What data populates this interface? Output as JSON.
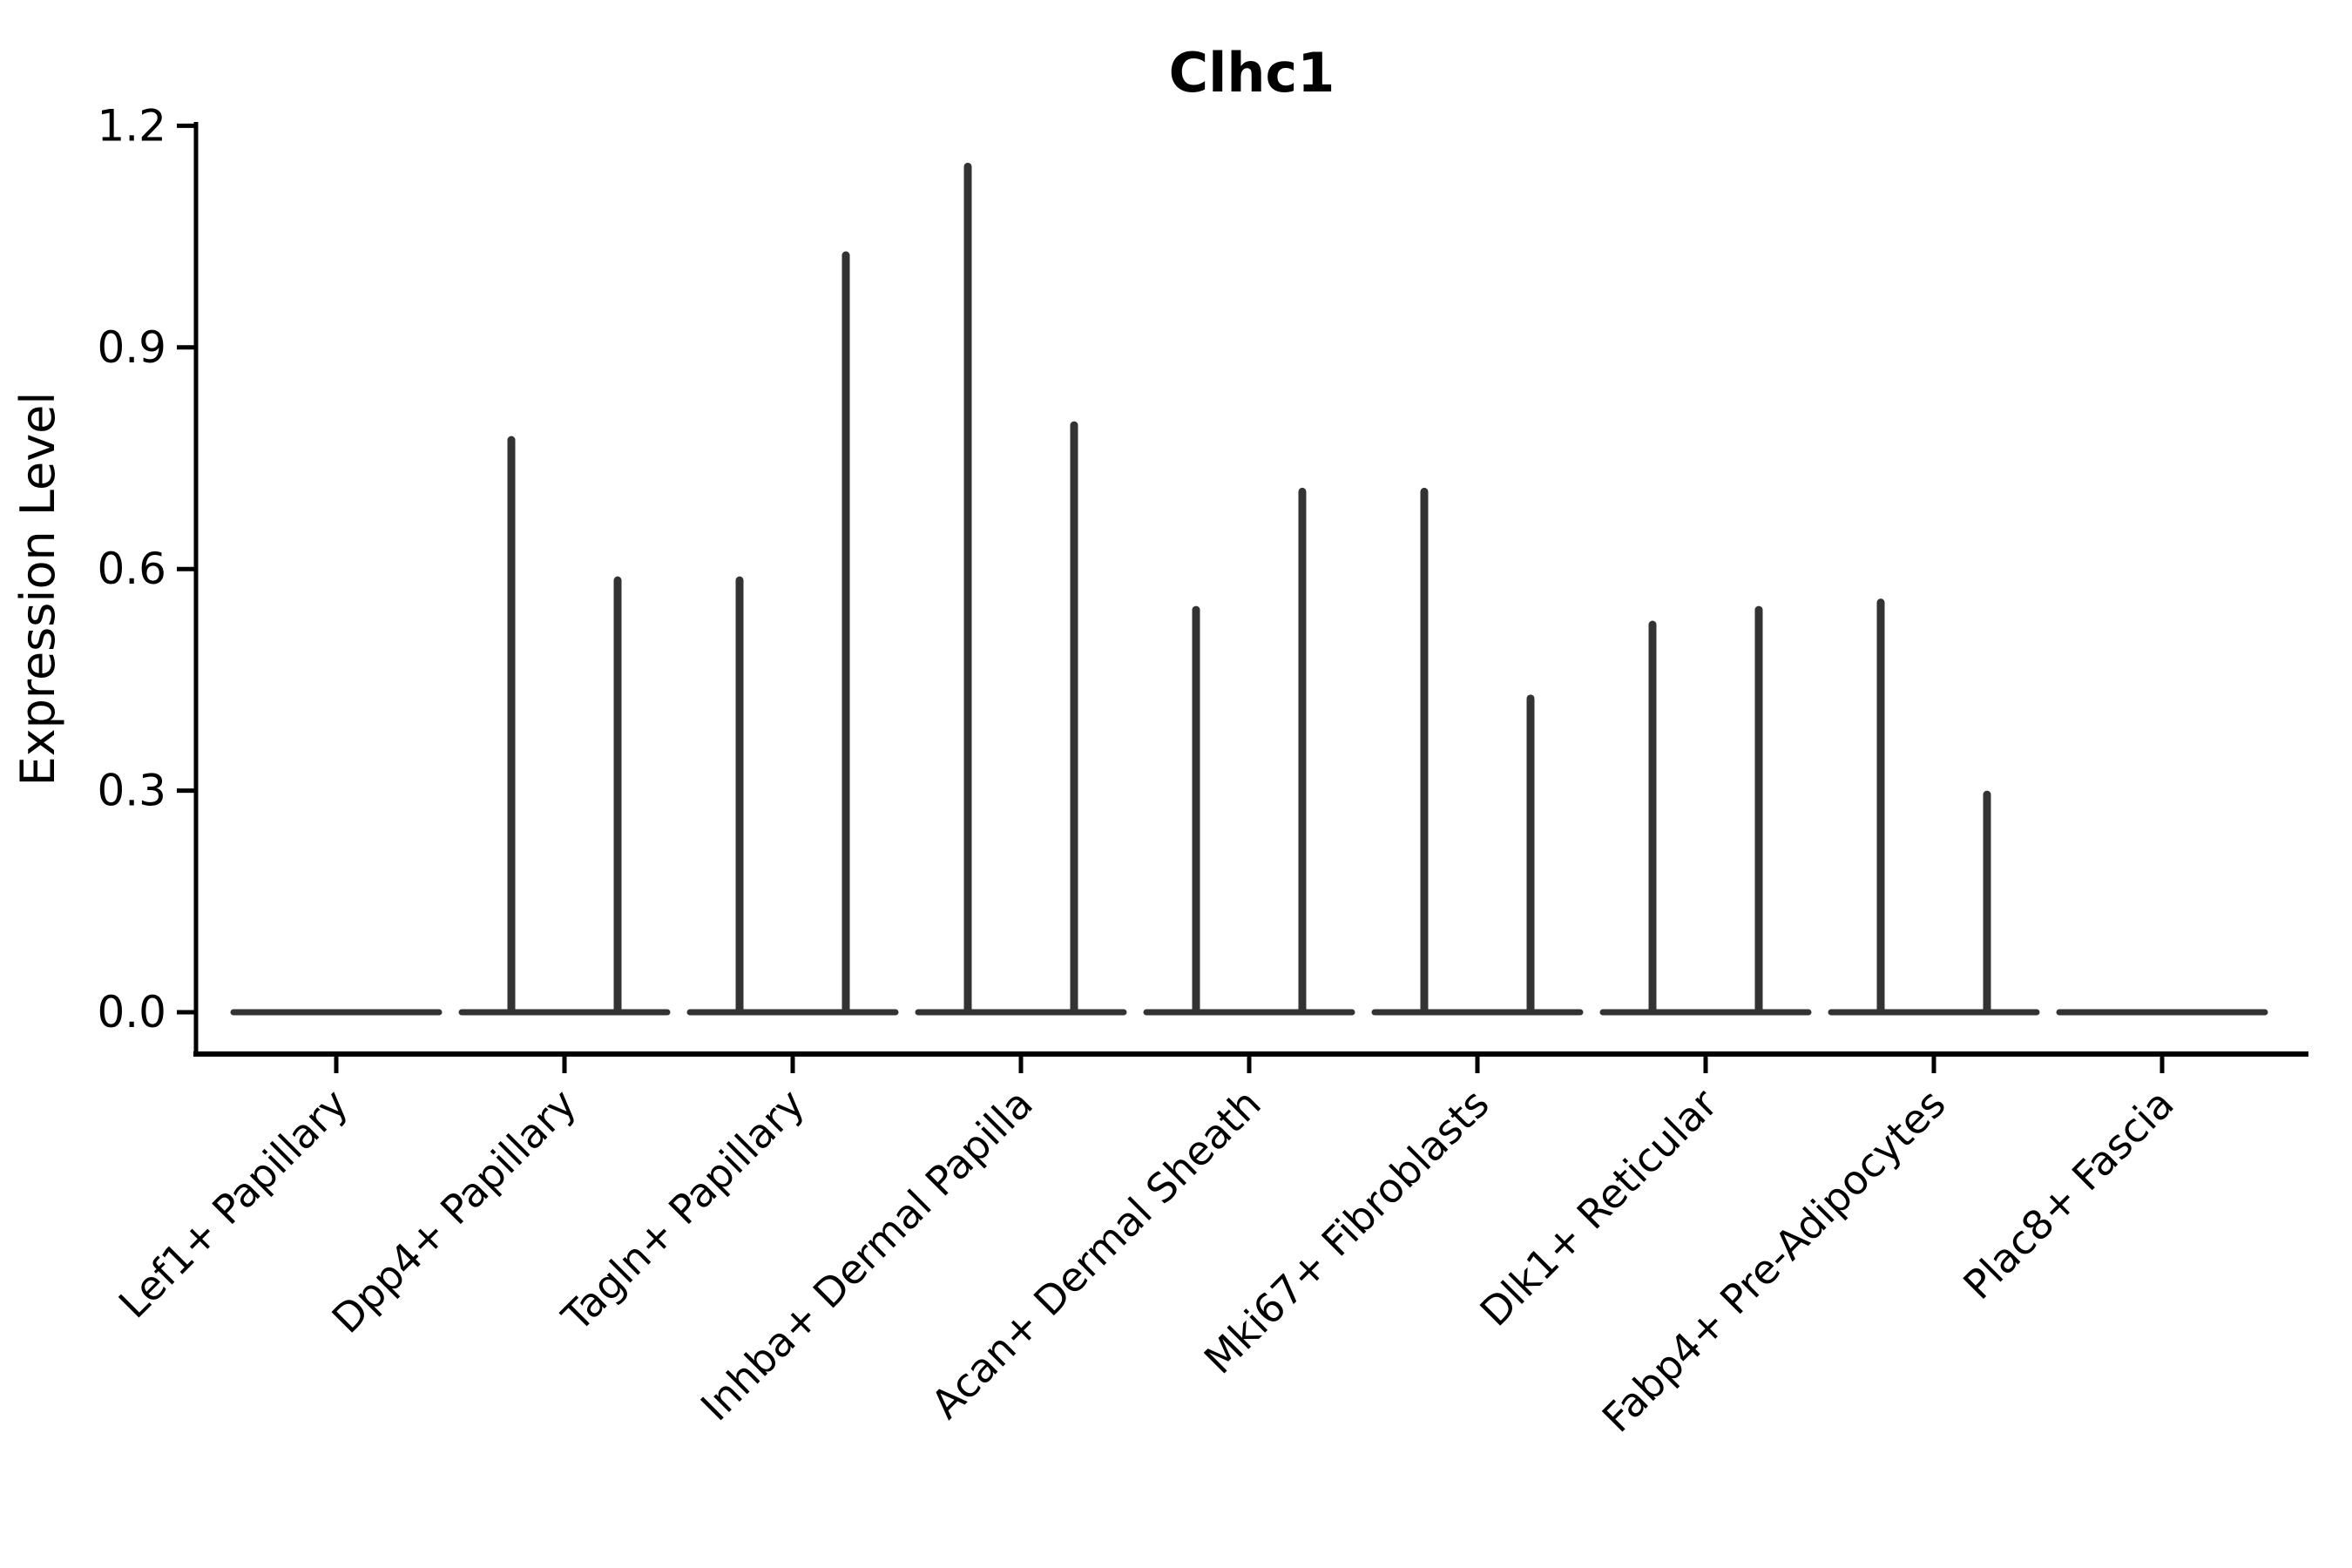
{
  "chart_data": {
    "type": "violin",
    "title": "Clhc1",
    "ylabel": "Expression Level",
    "xlabel": "",
    "ylim": [
      0.0,
      1.2
    ],
    "yticks": [
      0.0,
      0.3,
      0.6,
      0.9,
      1.2
    ],
    "ytick_labels": [
      "0.0",
      "0.3",
      "0.6",
      "0.9",
      "1.2"
    ],
    "grid": false,
    "legend_position": "none",
    "groups_per_category": 2,
    "baseline_value": 0.0,
    "categories": [
      "Lef1+ Papillary",
      "Dpp4+ Papillary",
      "Tagln+ Papillary",
      "Inhba+ Dermal Papilla",
      "Acan+ Dermal Sheath",
      "Mki67+ Fibroblasts",
      "Dlk1+ Reticular",
      "Fabp4+ Pre-Adipocytes",
      "Plac8+ Fascia"
    ],
    "violin_peaks": [
      [
        0.0,
        0.0
      ],
      [
        0.78,
        0.59
      ],
      [
        0.59,
        1.03
      ],
      [
        1.15,
        0.8
      ],
      [
        0.55,
        0.71
      ],
      [
        0.71,
        0.43
      ],
      [
        0.53,
        0.55
      ],
      [
        0.56,
        0.3
      ],
      [
        0.0,
        0.0
      ]
    ],
    "colors": {
      "violin": "#333333",
      "axis": "#000000",
      "background": "#ffffff"
    }
  }
}
